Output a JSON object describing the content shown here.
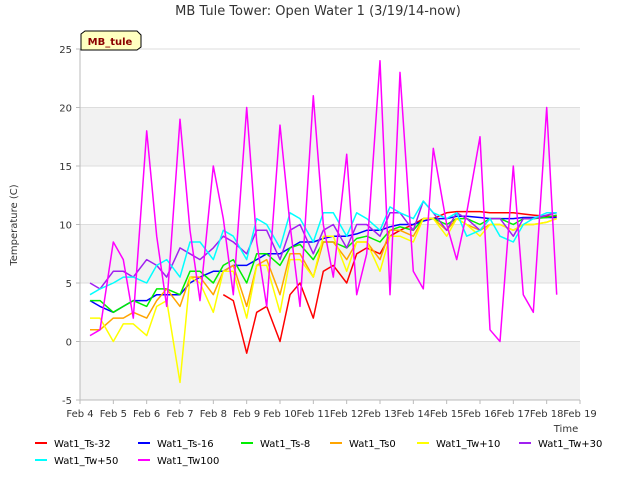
{
  "chart_data": {
    "type": "line",
    "title": "MB Tule Tower: Open Water 1 (3/19/14-now)",
    "xlabel": "Time",
    "ylabel": "Temperature (C)",
    "badge": "MB_tule",
    "xlim": [
      4,
      19
    ],
    "ylim": [
      -5,
      25
    ],
    "x_ticks": [
      4,
      5,
      6,
      7,
      8,
      9,
      10,
      11,
      12,
      13,
      14,
      15,
      16,
      17,
      18,
      19
    ],
    "x_tick_labels": [
      "Feb 4",
      "Feb 5",
      "Feb 6",
      "Feb 7",
      "Feb 8",
      "Feb 9",
      "Feb 10",
      "Feb 11",
      "Feb 12",
      "Feb 13",
      "Feb 14",
      "Feb 15",
      "Feb 16",
      "Feb 17",
      "Feb 18",
      "Feb 19"
    ],
    "y_ticks": [
      -5,
      0,
      5,
      10,
      15,
      20,
      25
    ],
    "y_tick_labels": [
      "-5",
      "0",
      "5",
      "10",
      "15",
      "20",
      "25"
    ],
    "x": [
      4.3,
      4.6,
      5.0,
      5.3,
      5.6,
      6.0,
      6.3,
      6.6,
      7.0,
      7.3,
      7.6,
      8.0,
      8.3,
      8.6,
      9.0,
      9.3,
      9.6,
      10.0,
      10.3,
      10.6,
      11.0,
      11.3,
      11.6,
      12.0,
      12.3,
      12.6,
      13.0,
      13.3,
      13.6,
      14.0,
      14.3,
      14.6,
      15.0,
      15.3,
      15.6,
      16.0,
      16.3,
      16.6,
      17.0,
      17.3,
      17.6,
      18.0,
      18.3
    ],
    "series": [
      {
        "name": "Wat1_Ts-32",
        "color": "#ff0000",
        "values": [
          null,
          null,
          null,
          null,
          null,
          null,
          null,
          null,
          null,
          null,
          null,
          null,
          4.0,
          3.5,
          -1.0,
          2.5,
          3.0,
          0.0,
          4.0,
          5.0,
          2.0,
          6.0,
          6.5,
          5.0,
          7.5,
          8.0,
          7.5,
          9.0,
          9.5,
          10.0,
          10.5,
          10.5,
          11.0,
          11.1,
          11.1,
          11.1,
          11.0,
          11.0,
          11.0,
          10.9,
          10.8,
          10.7,
          10.7
        ]
      },
      {
        "name": "Wat1_Ts-16",
        "color": "#0000ff",
        "values": [
          3.5,
          3.0,
          2.5,
          3.0,
          3.5,
          3.5,
          4.0,
          4.0,
          4.0,
          5.0,
          5.5,
          6.0,
          6.0,
          6.5,
          6.5,
          7.0,
          7.5,
          7.5,
          8.0,
          8.5,
          8.5,
          8.8,
          9.0,
          9.0,
          9.2,
          9.5,
          9.5,
          9.8,
          10.0,
          10.0,
          10.3,
          10.5,
          10.5,
          10.7,
          10.7,
          10.6,
          10.5,
          10.5,
          10.5,
          10.6,
          10.6,
          10.6,
          10.6
        ]
      },
      {
        "name": "Wat1_Ts-8",
        "color": "#00ee00",
        "values": [
          3.5,
          3.5,
          2.5,
          3.0,
          3.5,
          3.0,
          4.5,
          4.5,
          4.0,
          6.0,
          6.0,
          5.0,
          6.5,
          7.0,
          5.0,
          7.5,
          7.5,
          6.5,
          8.0,
          8.3,
          7.0,
          8.5,
          8.5,
          8.0,
          8.8,
          9.0,
          8.5,
          9.5,
          9.8,
          9.5,
          10.5,
          10.5,
          10.0,
          10.5,
          10.5,
          10.0,
          10.5,
          10.5,
          10.0,
          10.5,
          10.5,
          10.6,
          10.8
        ]
      },
      {
        "name": "Wat1_Ts0",
        "color": "#ffa500",
        "values": [
          1.0,
          1.0,
          2.0,
          2.0,
          2.5,
          2.0,
          3.5,
          4.5,
          3.0,
          5.5,
          5.5,
          4.0,
          6.0,
          6.5,
          3.0,
          6.5,
          7.0,
          4.0,
          7.5,
          7.5,
          5.5,
          8.5,
          8.5,
          7.0,
          8.5,
          8.5,
          7.0,
          9.5,
          9.5,
          9.0,
          10.5,
          10.5,
          9.5,
          10.5,
          10.0,
          9.5,
          10.0,
          10.0,
          9.5,
          10.0,
          10.0,
          10.2,
          10.5
        ]
      },
      {
        "name": "Wat1_Tw+10",
        "color": "#ffff00",
        "values": [
          2.0,
          2.0,
          0.0,
          1.5,
          1.5,
          0.5,
          3.0,
          3.5,
          -3.5,
          5.5,
          5.0,
          2.5,
          6.0,
          6.0,
          2.0,
          6.5,
          6.5,
          2.5,
          7.0,
          7.0,
          5.5,
          9.0,
          9.0,
          6.0,
          8.5,
          8.5,
          6.0,
          9.0,
          9.0,
          8.5,
          10.5,
          10.5,
          9.0,
          10.5,
          10.0,
          9.0,
          10.0,
          10.0,
          9.5,
          10.0,
          10.0,
          10.2,
          10.5
        ]
      },
      {
        "name": "Wat1_Tw+30",
        "color": "#a020f0",
        "values": [
          5.0,
          4.5,
          6.0,
          6.0,
          5.5,
          7.0,
          6.5,
          5.5,
          8.0,
          7.5,
          7.0,
          8.0,
          9.0,
          8.5,
          7.5,
          9.5,
          9.5,
          7.0,
          9.5,
          10.0,
          7.5,
          9.5,
          10.0,
          8.0,
          10.0,
          10.0,
          9.0,
          11.0,
          11.0,
          9.5,
          12.0,
          11.0,
          9.5,
          11.0,
          10.5,
          9.5,
          10.5,
          10.5,
          9.0,
          10.5,
          10.5,
          10.8,
          11.0
        ]
      },
      {
        "name": "Wat1_Tw+50",
        "color": "#00ffff",
        "values": [
          4.0,
          4.5,
          5.0,
          5.5,
          5.5,
          5.0,
          6.5,
          7.0,
          5.5,
          8.5,
          8.5,
          7.0,
          9.5,
          9.0,
          7.0,
          10.5,
          10.0,
          8.0,
          11.0,
          10.5,
          8.5,
          11.0,
          11.0,
          9.0,
          11.0,
          10.5,
          9.5,
          11.5,
          11.0,
          10.5,
          12.0,
          11.0,
          10.5,
          11.0,
          9.0,
          9.5,
          10.5,
          9.0,
          8.5,
          10.0,
          10.5,
          11.0,
          11.0
        ]
      },
      {
        "name": "Wat1_Tw100",
        "color": "#ff00ff",
        "values": [
          0.5,
          1.0,
          8.5,
          7.0,
          2.0,
          18.0,
          9.0,
          3.0,
          19.0,
          9.5,
          3.5,
          15.0,
          10.5,
          4.0,
          20.0,
          8.5,
          3.0,
          18.5,
          10.0,
          3.0,
          21.0,
          10.0,
          5.5,
          16.0,
          4.0,
          7.5,
          24.0,
          4.0,
          23.0,
          6.0,
          4.5,
          16.5,
          10.0,
          7.0,
          11.0,
          17.5,
          1.0,
          0.0,
          15.0,
          4.0,
          2.5,
          20.0,
          4.0
        ]
      }
    ]
  }
}
